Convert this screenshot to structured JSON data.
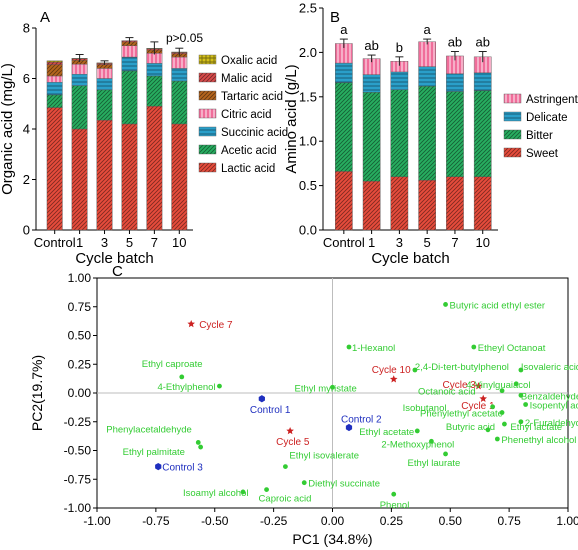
{
  "chart_data": [
    {
      "type": "bar",
      "panel_label": "A",
      "stacked": true,
      "xlabel": "Cycle batch",
      "ylabel": "Organic acid (mg/L)",
      "ylim": [
        0,
        8
      ],
      "yticks": [
        0,
        2,
        4,
        6,
        8
      ],
      "categories": [
        "Control",
        "1",
        "3",
        "5",
        "7",
        "10"
      ],
      "annotation": "p>0.05",
      "legend_position": "right",
      "series": [
        {
          "name": "Lactic acid",
          "color": "#e74c3c",
          "pattern": "diag",
          "values": [
            4.85,
            4.0,
            4.35,
            4.2,
            4.9,
            4.2
          ]
        },
        {
          "name": "Acetic acid",
          "color": "#27ae60",
          "pattern": "diag",
          "values": [
            0.5,
            1.72,
            1.2,
            2.1,
            1.2,
            1.7
          ]
        },
        {
          "name": "Succinic acid",
          "color": "#2a9fc9",
          "pattern": "hline",
          "values": [
            0.5,
            0.45,
            0.45,
            0.55,
            0.5,
            0.5
          ]
        },
        {
          "name": "Citric acid",
          "color": "#f06d9a",
          "pattern": "vline",
          "values": [
            0.25,
            0.4,
            0.4,
            0.45,
            0.4,
            0.45
          ]
        },
        {
          "name": "Tartaric acid",
          "color": "#b5651d",
          "pattern": "diag",
          "values": [
            0.45,
            0.15,
            0.15,
            0.15,
            0.13,
            0.13
          ]
        },
        {
          "name": "Malic acid",
          "color": "#d84a4a",
          "pattern": "diag",
          "values": [
            0.1,
            0.06,
            0.05,
            0.05,
            0.05,
            0.05
          ]
        },
        {
          "name": "Oxalic acid",
          "color": "#d4c01a",
          "pattern": "grid",
          "values": [
            0.05,
            0.02,
            0.02,
            0.0,
            0.02,
            0.02
          ]
        }
      ],
      "error_bars": [
        0.0,
        0.15,
        0.08,
        0.12,
        0.25,
        0.15
      ]
    },
    {
      "type": "bar",
      "panel_label": "B",
      "stacked": true,
      "xlabel": "Cycle batch",
      "ylabel": "Amino acid (g/L)",
      "ylim": [
        0,
        2.5
      ],
      "yticks": [
        0.0,
        0.5,
        1.0,
        1.5,
        2.0,
        2.5
      ],
      "categories": [
        "Control",
        "1",
        "3",
        "5",
        "7",
        "10"
      ],
      "significance": [
        "a",
        "ab",
        "b",
        "a",
        "ab",
        "ab"
      ],
      "legend_position": "right",
      "series": [
        {
          "name": "Sweet",
          "color": "#e74c3c",
          "pattern": "diag",
          "values": [
            0.66,
            0.55,
            0.6,
            0.56,
            0.6,
            0.6
          ]
        },
        {
          "name": "Bitter",
          "color": "#27ae60",
          "pattern": "diag",
          "values": [
            1.0,
            1.0,
            0.98,
            1.06,
            0.96,
            0.97
          ]
        },
        {
          "name": "Delicate",
          "color": "#2a9fc9",
          "pattern": "hline",
          "values": [
            0.22,
            0.2,
            0.2,
            0.22,
            0.2,
            0.2
          ]
        },
        {
          "name": "Astringent",
          "color": "#f06d9a",
          "pattern": "vline",
          "values": [
            0.22,
            0.18,
            0.12,
            0.28,
            0.2,
            0.18
          ]
        }
      ],
      "error_bars": [
        0.05,
        0.04,
        0.05,
        0.03,
        0.05,
        0.06
      ]
    },
    {
      "type": "scatter",
      "panel_label": "C",
      "xlabel": "PC1 (34.8%)",
      "ylabel": "PC2(19.7%)",
      "xlim": [
        -1.0,
        1.0
      ],
      "ylim": [
        -1.0,
        1.0
      ],
      "xticks": [
        -1.0,
        -0.75,
        -0.5,
        -0.25,
        0.0,
        0.25,
        0.5,
        0.75,
        1.0
      ],
      "yticks": [
        -1.0,
        -0.75,
        -0.5,
        -0.25,
        0.0,
        0.25,
        0.5,
        0.75,
        1.0
      ],
      "groups": [
        {
          "name": "Cycle",
          "color": "#cc2222",
          "marker": "star",
          "points": [
            {
              "label": "Cycle 7",
              "x": -0.6,
              "y": 0.6,
              "dx": 8,
              "dy": 4
            },
            {
              "label": "Cycle 10",
              "x": 0.26,
              "y": 0.12,
              "dx": -22,
              "dy": -6
            },
            {
              "label": "Cycle 3",
              "x": 0.62,
              "y": 0.06,
              "dx": -36,
              "dy": 2
            },
            {
              "label": "Cycle 1",
              "x": 0.64,
              "y": -0.05,
              "dx": -22,
              "dy": 10
            },
            {
              "label": "Cycle 5",
              "x": -0.18,
              "y": -0.33,
              "dx": -14,
              "dy": 14
            }
          ]
        },
        {
          "name": "Control",
          "color": "#1f2fbf",
          "marker": "hexagon",
          "points": [
            {
              "label": "Control 1",
              "x": -0.3,
              "y": -0.05,
              "dx": -12,
              "dy": 14
            },
            {
              "label": "Control 2",
              "x": 0.07,
              "y": -0.3,
              "dx": -8,
              "dy": -5
            },
            {
              "label": "Control 3",
              "x": -0.74,
              "y": -0.64,
              "dx": 4,
              "dy": 4
            }
          ]
        },
        {
          "name": "Compounds",
          "color": "#33cc33",
          "marker": "circle",
          "points": [
            {
              "label": "Butyric acid ethyl ester",
              "x": 0.48,
              "y": 0.77,
              "dx": 4,
              "dy": 4
            },
            {
              "label": "Etheyl Octanoat",
              "x": 0.6,
              "y": 0.4,
              "dx": 4,
              "dy": 4
            },
            {
              "label": "1-Hexanol",
              "x": 0.07,
              "y": 0.4,
              "dx": 3,
              "dy": 4
            },
            {
              "label": "2,4-Di-tert-butylphenol",
              "x": 0.35,
              "y": 0.2,
              "dx": 0,
              "dy": 0
            },
            {
              "label": "Ethyl myristate",
              "x": 0.0,
              "y": 0.05,
              "dx": -38,
              "dy": 4
            },
            {
              "label": "Ethyl caproate",
              "x": -0.64,
              "y": 0.14,
              "dx": -40,
              "dy": -10
            },
            {
              "label": "4-Ethylphenol",
              "x": -0.48,
              "y": 0.06,
              "dx": -62,
              "dy": 4
            },
            {
              "label": "Isovaleric acid",
              "x": 0.8,
              "y": 0.2,
              "dx": 0,
              "dy": 0
            },
            {
              "label": "4-Vinylguaiacol",
              "x": 0.78,
              "y": 0.08,
              "dx": -50,
              "dy": 4
            },
            {
              "label": "Octanoic acid",
              "x": 0.72,
              "y": 0.02,
              "dx": -84,
              "dy": 4
            },
            {
              "label": "Benzaldehyde",
              "x": 0.8,
              "y": -0.02,
              "dx": 0,
              "dy": 4
            },
            {
              "label": "Isobutanol",
              "x": 0.68,
              "y": -0.12,
              "dx": -90,
              "dy": 4
            },
            {
              "label": "Phenylethyl acetate",
              "x": 0.72,
              "y": -0.17,
              "dx": -82,
              "dy": 4
            },
            {
              "label": "Isopentyl acetate",
              "x": 0.82,
              "y": -0.1,
              "dx": 4,
              "dy": 4
            },
            {
              "label": "2-Furaldehyde",
              "x": 0.8,
              "y": -0.25,
              "dx": 4,
              "dy": 4
            },
            {
              "label": "Ethyl lactate",
              "x": 0.73,
              "y": -0.27,
              "dx": 6,
              "dy": 6
            },
            {
              "label": "Butyric acid",
              "x": 0.66,
              "y": -0.32,
              "dx": -42,
              "dy": 0
            },
            {
              "label": "Ethyl acetate",
              "x": 0.36,
              "y": -0.33,
              "dx": -58,
              "dy": 4
            },
            {
              "label": "Phenethyl alcohol",
              "x": 0.7,
              "y": -0.4,
              "dx": 4,
              "dy": 4
            },
            {
              "label": "2-Methoxyphenol",
              "x": 0.42,
              "y": -0.42,
              "dx": -50,
              "dy": 6
            },
            {
              "label": "Ethyl laurate",
              "x": 0.48,
              "y": -0.53,
              "dx": -38,
              "dy": 12
            },
            {
              "label": "Phenylacetaldehyde",
              "x": -0.57,
              "y": -0.43,
              "dx": -92,
              "dy": -10
            },
            {
              "label": "Ethyl palmitate",
              "x": -0.56,
              "y": -0.47,
              "dx": -78,
              "dy": 8
            },
            {
              "label": "Ethyl isovalerate",
              "x": -0.2,
              "y": -0.64,
              "dx": 4,
              "dy": -8
            },
            {
              "label": "Diethyl succinate",
              "x": -0.12,
              "y": -0.78,
              "dx": 4,
              "dy": 4
            },
            {
              "label": "Caproic acid",
              "x": -0.28,
              "y": -0.84,
              "dx": -8,
              "dy": 12
            },
            {
              "label": "Isoamyl alcohol",
              "x": -0.38,
              "y": -0.86,
              "dx": -60,
              "dy": 4
            },
            {
              "label": "Phenol",
              "x": 0.26,
              "y": -0.88,
              "dx": -14,
              "dy": 14
            }
          ]
        }
      ]
    }
  ]
}
